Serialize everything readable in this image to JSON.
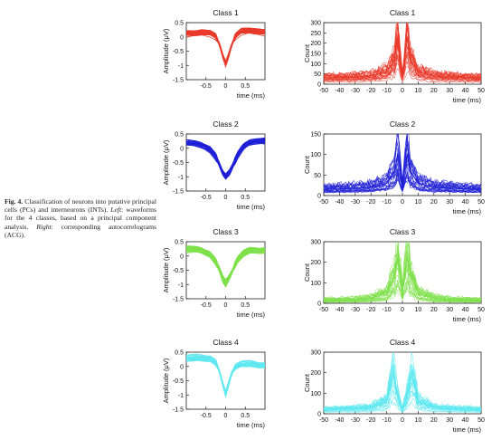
{
  "caption": {
    "fig_label": "Fig. 4.",
    "text_1": "Classification of neurons into putative principal cells (PCs) and interneurons (INTs).",
    "left_label": "Left",
    "text_2": ": waveforms for the 4 classes, based on a principal component analysis.",
    "right_label": "Right",
    "text_3": ": corresponding autocorrelograms (ACG)."
  },
  "chart_data": [
    {
      "type": "line",
      "panel": "waveform",
      "title": "Class 1",
      "color": "#e8392a",
      "xlabel": "time (ms)",
      "ylabel": "Amplitude (μV)",
      "xlim": [
        -1.0,
        1.0
      ],
      "ylim": [
        -1.5,
        0.5
      ],
      "xticks": [
        -0.5,
        0,
        0.5
      ],
      "xticklabels": [
        "-0.5",
        "0",
        "0.5"
      ],
      "yticks": [
        0.5,
        0,
        -0.5,
        -1,
        -1.5
      ],
      "yticklabels": [
        "0.5",
        "0",
        "-0.5",
        "-1",
        "-1.5"
      ],
      "x": [
        -1.0,
        -0.8,
        -0.6,
        -0.4,
        -0.25,
        -0.15,
        -0.08,
        0.0,
        0.08,
        0.15,
        0.25,
        0.4,
        0.6,
        0.8,
        1.0
      ],
      "y": [
        0.1,
        0.12,
        0.15,
        0.12,
        0.0,
        -0.3,
        -0.65,
        -0.95,
        -0.65,
        -0.3,
        0.02,
        0.18,
        0.22,
        0.18,
        0.15
      ]
    },
    {
      "type": "line",
      "panel": "acg",
      "title": "Class 1",
      "color": "#e8392a",
      "xlabel": "time (ms)",
      "ylabel": "Count",
      "xlim": [
        -50,
        50
      ],
      "ylim": [
        0,
        300
      ],
      "xticks": [
        -50,
        -40,
        -30,
        -20,
        -10,
        0,
        10,
        20,
        30,
        40,
        50
      ],
      "xticklabels": [
        "-50",
        "-40",
        "-30",
        "-20",
        "-10",
        "0",
        "10",
        "20",
        "30",
        "40",
        "50"
      ],
      "yticks": [
        0,
        50,
        100,
        150,
        200,
        250,
        300
      ],
      "yticklabels": [
        "0",
        "50",
        "100",
        "150",
        "200",
        "250",
        "300"
      ],
      "x": [
        -50,
        -40,
        -30,
        -20,
        -10,
        -5,
        -3,
        -1,
        0,
        1,
        3,
        5,
        10,
        20,
        30,
        40,
        50
      ],
      "y": [
        30,
        32,
        35,
        40,
        60,
        120,
        230,
        90,
        40,
        90,
        230,
        120,
        60,
        40,
        35,
        32,
        30
      ]
    },
    {
      "type": "line",
      "panel": "waveform",
      "title": "Class 2",
      "color": "#1f1fd6",
      "xlabel": "time (ms)",
      "ylabel": "Amplitude (μV)",
      "xlim": [
        -1.0,
        1.0
      ],
      "ylim": [
        -1.5,
        0.5
      ],
      "xticks": [
        -0.5,
        0,
        0.5
      ],
      "xticklabels": [
        "-0.5",
        "0",
        "0.5"
      ],
      "yticks": [
        0.5,
        0,
        -0.5,
        -1,
        -1.5
      ],
      "yticklabels": [
        "0.5",
        "0",
        "-0.5",
        "-1",
        "-1.5"
      ],
      "x": [
        -1.0,
        -0.8,
        -0.6,
        -0.4,
        -0.25,
        -0.15,
        -0.08,
        0.0,
        0.1,
        0.2,
        0.3,
        0.45,
        0.6,
        0.8,
        1.0
      ],
      "y": [
        0.2,
        0.18,
        0.1,
        -0.05,
        -0.3,
        -0.6,
        -0.85,
        -1.0,
        -0.85,
        -0.55,
        -0.25,
        0.05,
        0.2,
        0.25,
        0.25
      ]
    },
    {
      "type": "line",
      "panel": "acg",
      "title": "Class 2",
      "color": "#1f1fd6",
      "xlabel": "time (ms)",
      "ylabel": "Count",
      "xlim": [
        -50,
        50
      ],
      "ylim": [
        0,
        150
      ],
      "xticks": [
        -50,
        -40,
        -30,
        -20,
        -10,
        0,
        10,
        20,
        30,
        40,
        50
      ],
      "xticklabels": [
        "-50",
        "-40",
        "-30",
        "-20",
        "-10",
        "0",
        "10",
        "20",
        "30",
        "40",
        "50"
      ],
      "yticks": [
        0,
        50,
        100,
        150
      ],
      "yticklabels": [
        "0",
        "50",
        "100",
        "150"
      ],
      "x": [
        -50,
        -40,
        -30,
        -20,
        -10,
        -5,
        -3,
        -1,
        0,
        1,
        3,
        5,
        10,
        20,
        30,
        40,
        50
      ],
      "y": [
        15,
        16,
        18,
        20,
        30,
        60,
        100,
        50,
        20,
        50,
        100,
        60,
        30,
        20,
        18,
        16,
        15
      ]
    },
    {
      "type": "line",
      "panel": "waveform",
      "title": "Class 3",
      "color": "#7ee04a",
      "xlabel": "time (ms)",
      "ylabel": "Amplitude (μV)",
      "xlim": [
        -1.0,
        1.0
      ],
      "ylim": [
        -1.5,
        0.5
      ],
      "xticks": [
        -0.5,
        0,
        0.5
      ],
      "xticklabels": [
        "-0.5",
        "0",
        "0.5"
      ],
      "yticks": [
        0.5,
        0,
        -0.5,
        -1,
        -1.5
      ],
      "yticklabels": [
        "0.5",
        "0",
        "-0.5",
        "-1",
        "-1.5"
      ],
      "x": [
        -1.0,
        -0.8,
        -0.6,
        -0.4,
        -0.25,
        -0.15,
        -0.08,
        0.0,
        0.1,
        0.2,
        0.3,
        0.45,
        0.6,
        0.8,
        1.0
      ],
      "y": [
        0.25,
        0.25,
        0.2,
        0.05,
        -0.2,
        -0.5,
        -0.8,
        -0.98,
        -0.75,
        -0.45,
        -0.15,
        0.1,
        0.2,
        0.2,
        0.2
      ]
    },
    {
      "type": "line",
      "panel": "acg",
      "title": "Class 3",
      "color": "#7ee04a",
      "xlabel": "time (ms)",
      "ylabel": "Count",
      "xlim": [
        -50,
        50
      ],
      "ylim": [
        0,
        300
      ],
      "xticks": [
        -50,
        -40,
        -30,
        -20,
        -10,
        0,
        10,
        20,
        30,
        40,
        50
      ],
      "xticklabels": [
        "-50",
        "-40",
        "-30",
        "-20",
        "-10",
        "0",
        "10",
        "20",
        "30",
        "40",
        "50"
      ],
      "yticks": [
        0,
        100,
        200,
        300
      ],
      "yticklabels": [
        "0",
        "100",
        "200",
        "300"
      ],
      "x": [
        -50,
        -40,
        -30,
        -20,
        -10,
        -5,
        -3,
        -1,
        0,
        1,
        3,
        5,
        10,
        20,
        30,
        40,
        50
      ],
      "y": [
        15,
        16,
        18,
        25,
        50,
        140,
        220,
        120,
        60,
        120,
        220,
        140,
        50,
        25,
        18,
        16,
        15
      ]
    },
    {
      "type": "line",
      "panel": "waveform",
      "title": "Class 4",
      "color": "#5fe8f0",
      "xlabel": "time (ms)",
      "ylabel": "Amplitude (μV)",
      "xlim": [
        -1.0,
        1.0
      ],
      "ylim": [
        -1.5,
        0.5
      ],
      "xticks": [
        -0.5,
        0,
        0.5
      ],
      "xticklabels": [
        "-0.5",
        "0",
        "0.5"
      ],
      "yticks": [
        0.5,
        0,
        -0.5,
        -1,
        -1.5
      ],
      "yticklabels": [
        "0.5",
        "0",
        "-0.5",
        "-1",
        "-1.5"
      ],
      "x": [
        -1.0,
        -0.8,
        -0.6,
        -0.4,
        -0.25,
        -0.15,
        -0.08,
        0.0,
        0.08,
        0.15,
        0.25,
        0.4,
        0.6,
        0.8,
        1.0
      ],
      "y": [
        0.3,
        0.3,
        0.3,
        0.28,
        0.15,
        -0.2,
        -0.6,
        -0.98,
        -0.6,
        -0.25,
        0.0,
        0.1,
        0.1,
        0.05,
        0.05
      ]
    },
    {
      "type": "line",
      "panel": "acg",
      "title": "Class 4",
      "color": "#5fe8f0",
      "xlabel": "time (ms)",
      "ylabel": "Count",
      "xlim": [
        -50,
        50
      ],
      "ylim": [
        0,
        300
      ],
      "xticks": [
        -50,
        -40,
        -30,
        -20,
        -10,
        0,
        10,
        20,
        30,
        40,
        50
      ],
      "xticklabels": [
        "-50",
        "-40",
        "-30",
        "-20",
        "-10",
        "0",
        "10",
        "20",
        "30",
        "40",
        "50"
      ],
      "yticks": [
        0,
        100,
        200,
        300
      ],
      "yticklabels": [
        "0",
        "100",
        "200",
        "300"
      ],
      "x": [
        -50,
        -40,
        -30,
        -20,
        -10,
        -6,
        -4,
        -2,
        0,
        2,
        4,
        6,
        10,
        20,
        30,
        40,
        50
      ],
      "y": [
        20,
        22,
        24,
        30,
        60,
        200,
        120,
        60,
        20,
        60,
        120,
        200,
        60,
        30,
        24,
        22,
        20
      ]
    }
  ]
}
